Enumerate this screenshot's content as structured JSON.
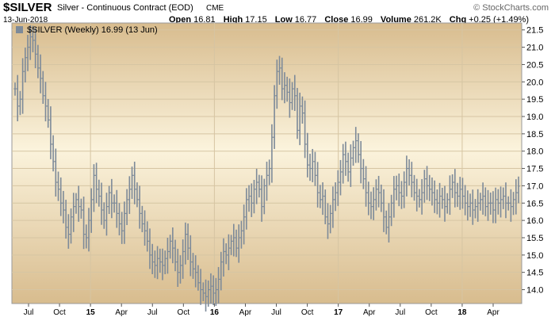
{
  "header": {
    "symbol": "$SILVER",
    "description": "Silver - Continuous Contract (EOD)",
    "exchange": "CME",
    "date": "13-Jun-2018",
    "open_label": "Open",
    "open": "16.81",
    "high_label": "High",
    "high": "17.15",
    "low_label": "Low",
    "low": "16.77",
    "close_label": "Close",
    "close": "16.99",
    "volume_label": "Volume",
    "volume": "261.2K",
    "chg_label": "Chg",
    "chg": "+0.25 (+1.49%)",
    "brand": "© StockCharts.com"
  },
  "colors": {
    "bar": "#7d8a99",
    "grid": "#d6c5a3",
    "bg_top": "#d8bc8e",
    "bg_mid": "#fbf3dc",
    "bg_bottom": "#d8bc8e"
  },
  "chart_data": {
    "type": "ohlc-bar",
    "legend": "$SILVER (Weekly) 16.99 (13 Jun)",
    "y_ticks": [
      14.0,
      14.5,
      15.0,
      15.5,
      16.0,
      16.5,
      17.0,
      17.5,
      18.0,
      18.5,
      19.0,
      19.5,
      20.0,
      20.5,
      21.0,
      21.5
    ],
    "ylim": [
      13.6,
      21.7
    ],
    "x_ticks": [
      "Jul",
      "Oct",
      "15",
      "Apr",
      "Jul",
      "Oct",
      "16",
      "Apr",
      "Jul",
      "Oct",
      "17",
      "Apr",
      "Jul",
      "Oct",
      "18",
      "Apr"
    ],
    "major_ticks": [
      "15",
      "16",
      "17",
      "18"
    ],
    "grid": true,
    "closes": [
      19.8,
      19.3,
      19.5,
      20.3,
      20.7,
      21.0,
      21.3,
      21.2,
      20.8,
      20.4,
      20.1,
      19.6,
      19.3,
      18.9,
      18.2,
      17.7,
      17.1,
      16.9,
      16.5,
      16.3,
      15.8,
      15.6,
      16.1,
      16.4,
      16.6,
      16.4,
      16.3,
      15.6,
      15.5,
      16.0,
      16.6,
      17.3,
      16.9,
      16.7,
      16.3,
      16.0,
      16.4,
      16.8,
      16.5,
      16.5,
      16.2,
      15.9,
      15.7,
      16.2,
      16.6,
      16.9,
      17.3,
      16.9,
      16.6,
      16.2,
      15.9,
      15.7,
      15.4,
      15.0,
      14.8,
      14.7,
      14.9,
      14.8,
      14.7,
      14.9,
      15.1,
      15.4,
      15.2,
      14.8,
      14.5,
      14.7,
      15.1,
      15.6,
      15.2,
      14.8,
      14.6,
      14.5,
      14.2,
      14.0,
      13.9,
      13.8,
      14.0,
      14.1,
      13.9,
      14.0,
      14.3,
      14.8,
      15.1,
      15.0,
      15.2,
      15.4,
      15.5,
      15.2,
      15.5,
      15.7,
      16.1,
      16.6,
      16.7,
      16.5,
      16.9,
      17.1,
      16.9,
      16.4,
      17.0,
      17.3,
      17.5,
      18.4,
      19.6,
      20.3,
      20.4,
      19.8,
      19.9,
      19.7,
      19.4,
      19.8,
      19.6,
      18.6,
      19.3,
      19.1,
      18.2,
      17.6,
      17.5,
      17.7,
      17.3,
      16.8,
      16.6,
      16.7,
      16.1,
      15.9,
      16.2,
      16.6,
      16.8,
      17.1,
      17.4,
      17.9,
      17.7,
      17.4,
      17.8,
      18.1,
      18.3,
      17.9,
      17.5,
      17.2,
      16.8,
      16.5,
      16.4,
      16.6,
      16.9,
      16.8,
      16.5,
      16.1,
      15.8,
      16.1,
      16.5,
      16.9,
      17.0,
      16.8,
      16.7,
      17.1,
      17.5,
      17.3,
      17.1,
      16.8,
      16.7,
      16.6,
      16.8,
      17.2,
      17.0,
      16.9,
      16.8,
      16.6,
      16.5,
      16.7,
      16.6,
      16.4,
      16.6,
      16.9,
      17.1,
      16.8,
      16.7,
      16.9,
      16.7,
      16.5,
      16.4,
      16.5,
      16.3,
      16.4,
      16.5,
      16.6,
      16.7,
      16.4,
      16.5,
      16.5,
      16.3,
      16.6,
      16.5,
      16.6,
      16.7,
      16.5,
      16.5,
      16.4,
      16.6,
      16.8,
      16.99
    ]
  }
}
